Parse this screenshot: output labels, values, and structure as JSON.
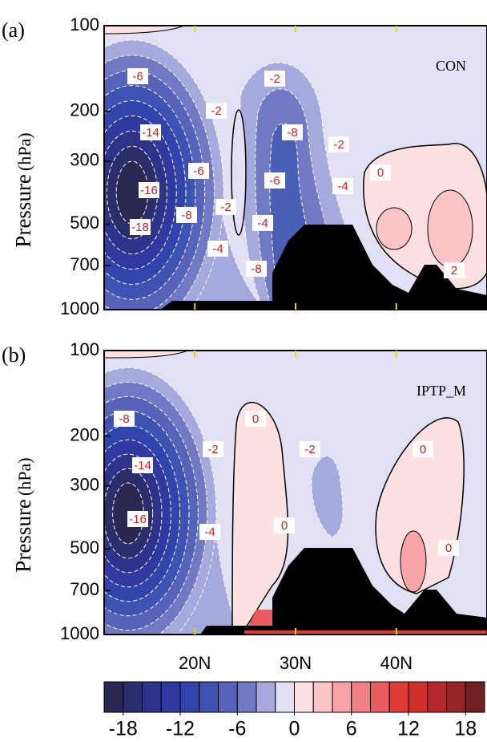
{
  "chart_data": {
    "type": "contour",
    "ylabel": "Pressure",
    "yunit": "(hPa)",
    "yscale": "log",
    "ylim": [
      100,
      1000
    ],
    "yticks": [
      100,
      200,
      300,
      500,
      700,
      1000
    ],
    "xlim": [
      11,
      49
    ],
    "xticks": [
      {
        "value": 20,
        "label": "20N"
      },
      {
        "value": 30,
        "label": "30N"
      },
      {
        "value": 40,
        "label": "40N"
      }
    ],
    "panels": [
      {
        "label": "(a)",
        "name": "CON",
        "contour_labels": [
          -6,
          -2,
          -2,
          -8,
          -14,
          -2,
          -6,
          0,
          -16,
          -6,
          -4,
          -2,
          -8,
          -18,
          -4,
          -4,
          -8,
          2
        ]
      },
      {
        "label": "(b)",
        "name": "IPTP_M",
        "contour_labels": [
          -8,
          0,
          -14,
          -2,
          -2,
          0,
          -16,
          0,
          -4,
          0
        ]
      }
    ],
    "colorbar": {
      "levels": [
        -20,
        -18,
        -16,
        -14,
        -12,
        -10,
        -8,
        -6,
        -4,
        -2,
        0,
        2,
        4,
        6,
        8,
        10,
        12,
        14,
        16,
        18,
        20
      ],
      "colors": [
        "#282850",
        "#2c2d6b",
        "#2e3288",
        "#2f39a0",
        "#3144ab",
        "#3d52b1",
        "#5563b8",
        "#7179c4",
        "#a6a9dc",
        "#e1e0f4",
        "#fde0e0",
        "#fbc4c7",
        "#f7a3a8",
        "#f17f86",
        "#e85c5f",
        "#df3a33",
        "#d0302c",
        "#b5292a",
        "#952425",
        "#712020"
      ],
      "ticks": [
        -18,
        -12,
        -6,
        0,
        6,
        12,
        18
      ]
    }
  }
}
